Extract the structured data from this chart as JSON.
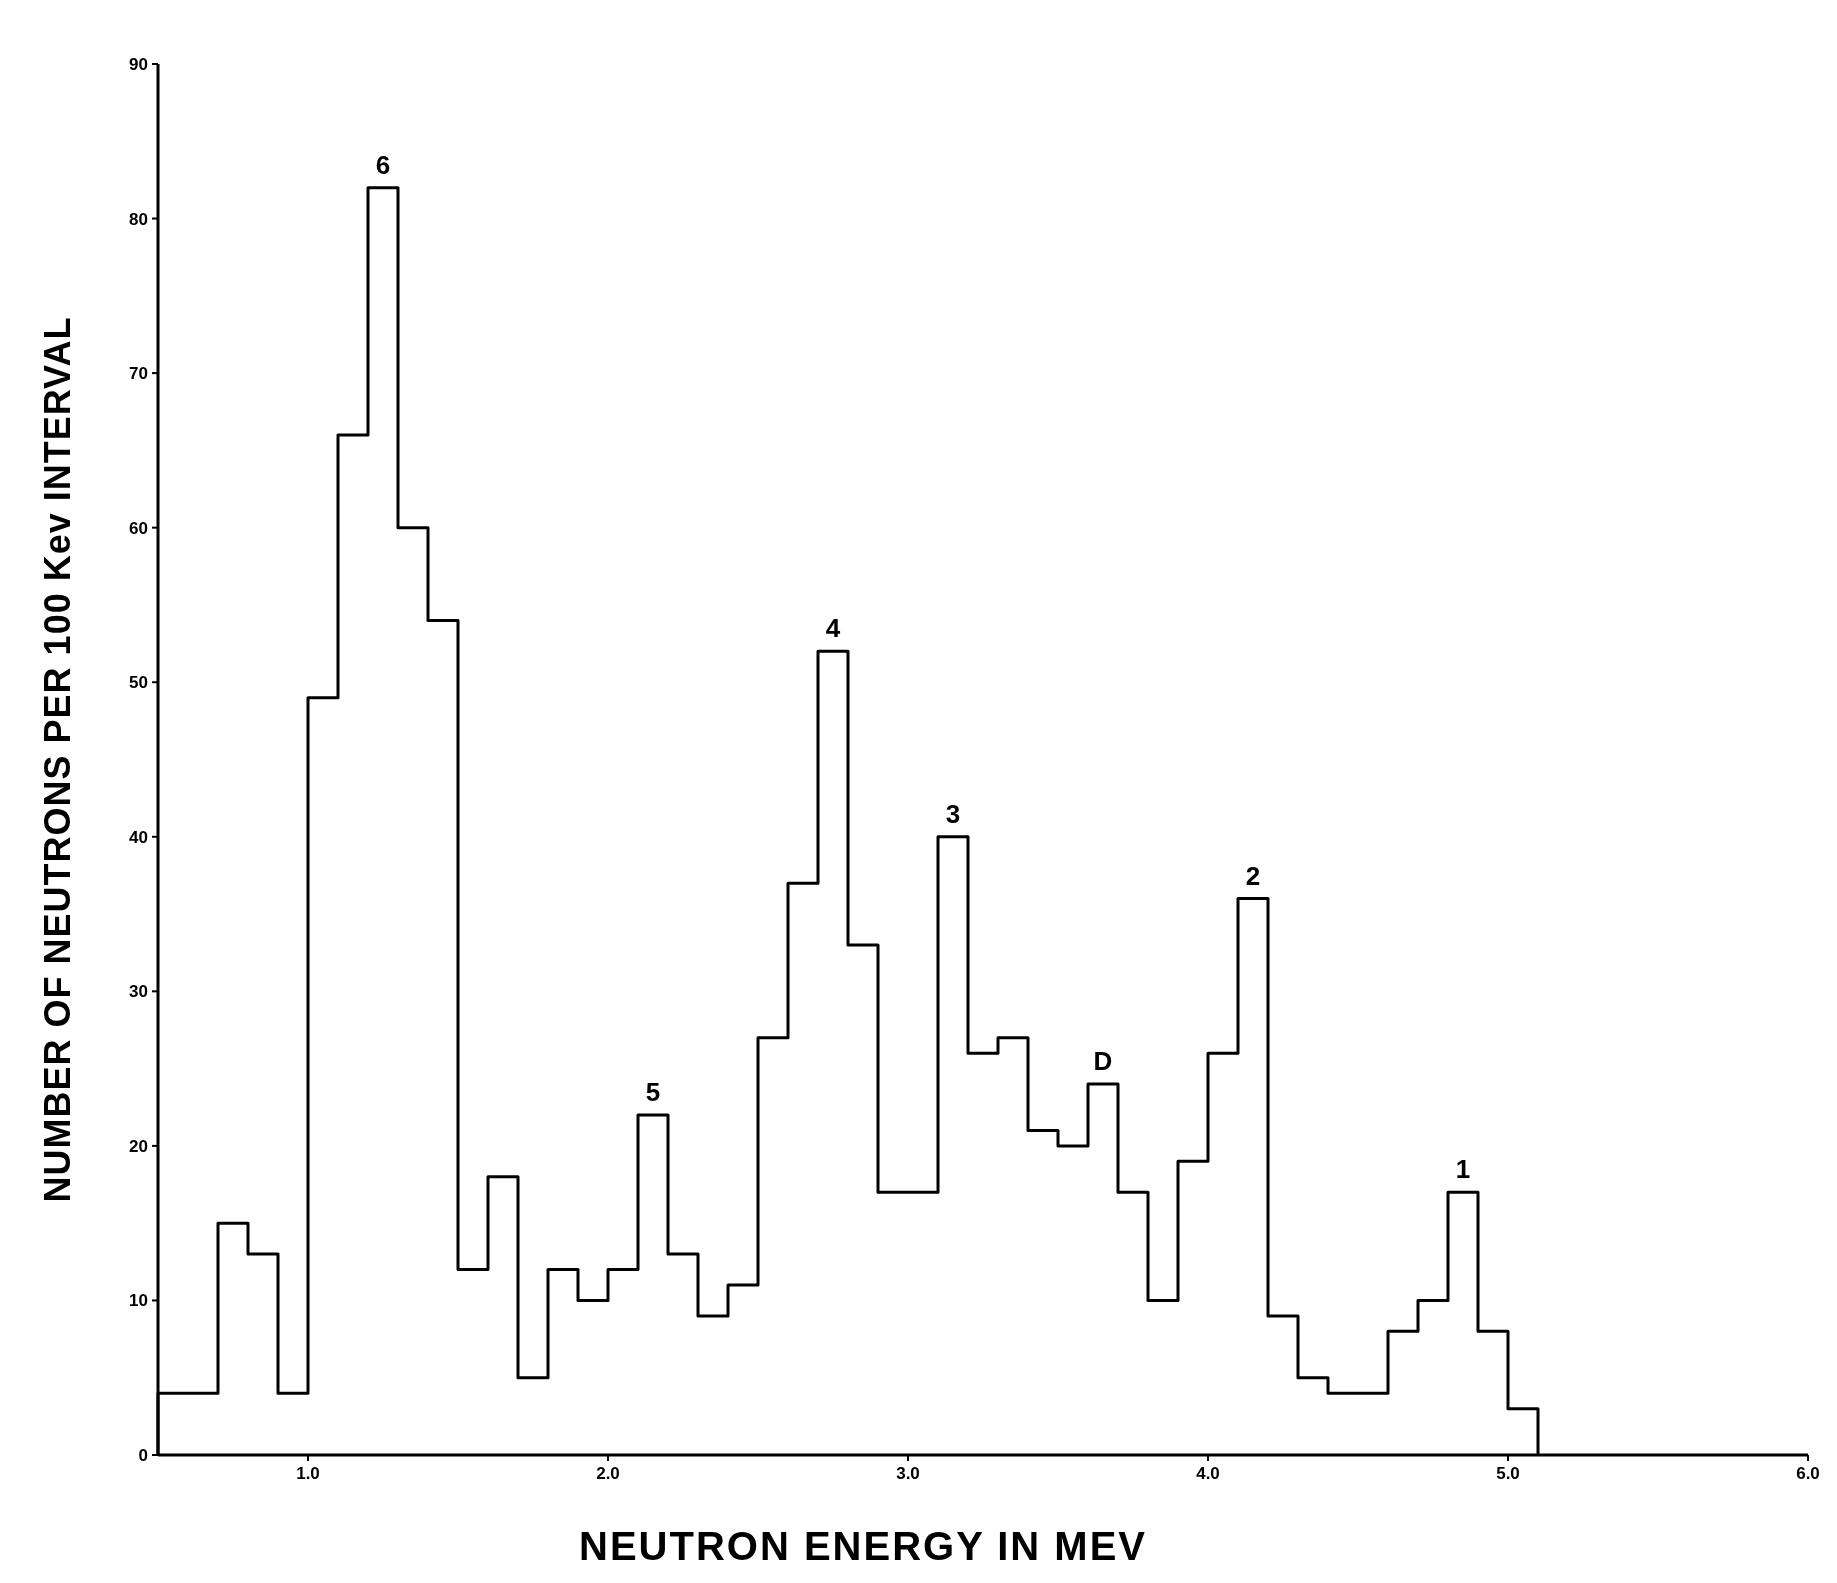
{
  "chart_data": {
    "type": "histogram",
    "xlabel": "NEUTRON ENERGY IN MEV",
    "ylabel": "NUMBER OF NEUTRONS PER 100 Kev INTERVAL",
    "bins": [
      0.5,
      0.6,
      0.7,
      0.8,
      0.9,
      1.0,
      1.1,
      1.2,
      1.3,
      1.4,
      1.5,
      1.6,
      1.7,
      1.8,
      1.9,
      2.0,
      2.1,
      2.2,
      2.3,
      2.4,
      2.5,
      2.6,
      2.7,
      2.8,
      2.9,
      3.0,
      3.1,
      3.2,
      3.3,
      3.4,
      3.5,
      3.6,
      3.7,
      3.8,
      3.9,
      4.0,
      4.1,
      4.2,
      4.3,
      4.4,
      4.5,
      4.6,
      4.7,
      4.8,
      4.9,
      5.0,
      5.1
    ],
    "values": [
      4,
      4,
      15,
      13,
      4,
      49,
      66,
      82,
      60,
      54,
      12,
      18,
      5,
      12,
      10,
      12,
      22,
      13,
      9,
      11,
      27,
      37,
      52,
      33,
      17,
      17,
      40,
      26,
      27,
      21,
      20,
      24,
      17,
      10,
      19,
      26,
      36,
      9,
      5,
      4,
      4,
      8,
      10,
      17,
      8,
      3
    ],
    "color": "#000000",
    "xlim": [
      0.5,
      6.0
    ],
    "ylim": [
      0,
      90
    ],
    "xticks": [
      {
        "value": 1,
        "label": "1.0"
      },
      {
        "value": 2,
        "label": "2.0"
      },
      {
        "value": 3,
        "label": "3.0"
      },
      {
        "value": 4,
        "label": "4.0"
      },
      {
        "value": 5,
        "label": "5.0"
      },
      {
        "value": 6,
        "label": "6.0"
      }
    ],
    "yticks": [
      0,
      10,
      20,
      30,
      40,
      50,
      60,
      70,
      80,
      90
    ],
    "annotations": [
      {
        "text": "6",
        "x": 1.25,
        "y": 82
      },
      {
        "text": "5",
        "x": 2.15,
        "y": 22
      },
      {
        "text": "4",
        "x": 2.75,
        "y": 52
      },
      {
        "text": "3",
        "x": 3.15,
        "y": 40
      },
      {
        "text": "D",
        "x": 3.65,
        "y": 24
      },
      {
        "text": "2",
        "x": 4.15,
        "y": 36
      },
      {
        "text": "1",
        "x": 4.85,
        "y": 17
      }
    ],
    "grid": false
  }
}
